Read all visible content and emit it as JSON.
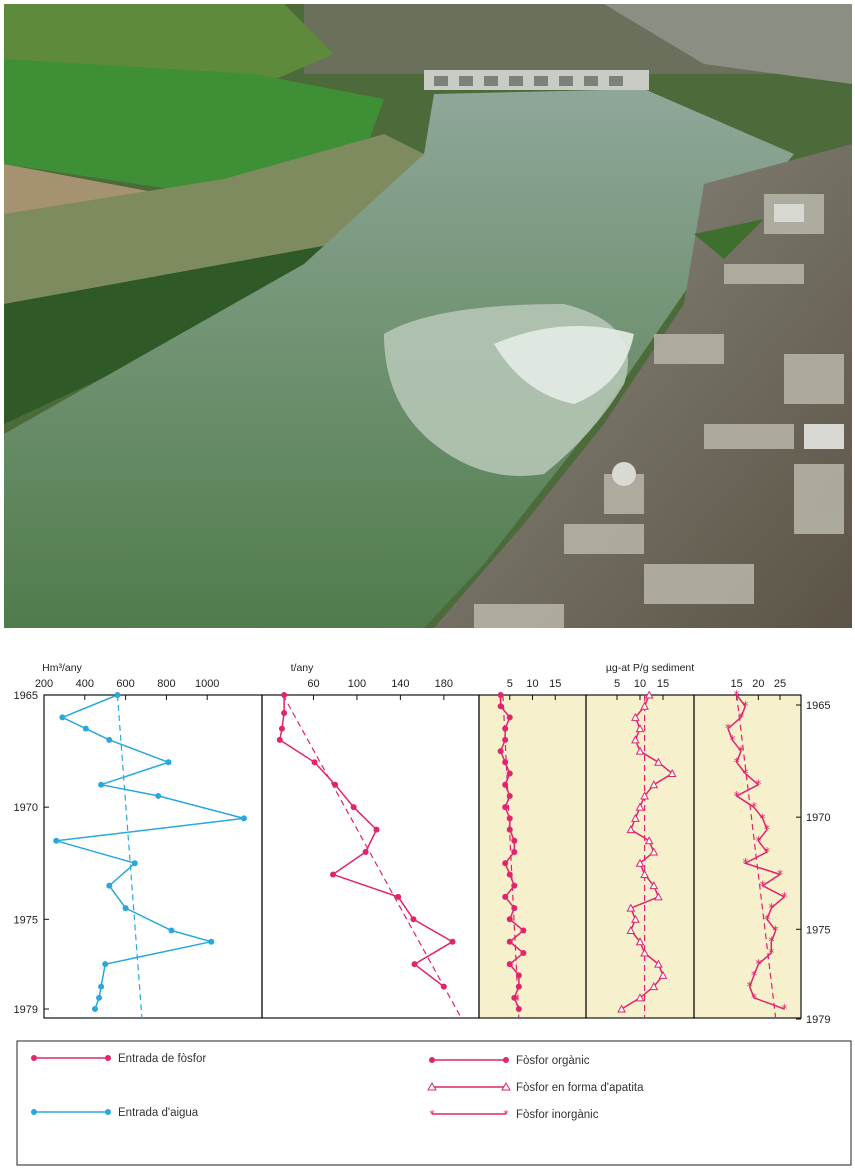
{
  "photo": {
    "description_icon": "river-aerial-photo-icon"
  },
  "colors": {
    "water": "#29a8dc",
    "phosphorus": "#e0246e",
    "shade": "#f6f0cc"
  },
  "chart_data": [
    {
      "id": "water",
      "type": "line",
      "unit_label": "Hm³/any",
      "x_ticks": [
        200,
        400,
        600,
        800,
        1000
      ],
      "xlim": [
        200,
        1200
      ],
      "y": [
        1965,
        1966,
        1966.5,
        1967,
        1968,
        1969,
        1969.5,
        1970.5,
        1971.5,
        1972.5,
        1973.5,
        1974.5,
        1975.5,
        1976,
        1977,
        1978,
        1978.5,
        1979
      ],
      "x": [
        560,
        290,
        405,
        520,
        810,
        480,
        760,
        1180,
        260,
        645,
        520,
        600,
        825,
        1020,
        500,
        480,
        470,
        450
      ],
      "trend": {
        "x": [
          560,
          680
        ],
        "y": [
          1965,
          1979.4
        ]
      },
      "series_name": "Entrada d'aigua"
    },
    {
      "id": "phosphorus-input",
      "type": "line",
      "unit_label": "t/any",
      "x_ticks": [
        60,
        100,
        140,
        180
      ],
      "xlim": [
        20,
        205
      ],
      "y": [
        1965,
        1965.8,
        1966.5,
        1967,
        1968,
        1969,
        1970,
        1971,
        1972,
        1973,
        1974,
        1975,
        1976,
        1977,
        1978
      ],
      "x": [
        33,
        33,
        31,
        29,
        61,
        80,
        97,
        118,
        108,
        78,
        138,
        152,
        188,
        153,
        180
      ],
      "trend": {
        "x": [
          32,
          196
        ],
        "y": [
          1965,
          1979.4
        ]
      },
      "series_name": "Entrada de fòsfor"
    },
    {
      "id": "organic",
      "type": "line",
      "unit_label": "",
      "x_ticks": [
        5,
        10,
        15
      ],
      "xlim": [
        0,
        20
      ],
      "y": [
        1965,
        1965.5,
        1966,
        1966.5,
        1967,
        1967.5,
        1968,
        1968.5,
        1969,
        1969.5,
        1970,
        1970.5,
        1971,
        1971.5,
        1972,
        1972.5,
        1973,
        1973.5,
        1974,
        1974.5,
        1975,
        1975.5,
        1976,
        1976.5,
        1977,
        1977.5,
        1978,
        1978.5,
        1979
      ],
      "x": [
        3,
        3,
        5,
        4,
        4,
        3,
        4,
        5,
        4,
        5,
        4,
        5,
        5,
        6,
        6,
        4,
        5,
        6,
        4,
        6,
        5,
        8,
        5,
        8,
        5,
        7,
        7,
        6,
        7
      ],
      "trend": {
        "x": [
          3.5,
          7
        ],
        "y": [
          1965,
          1979.4
        ]
      },
      "series_name": "Fòsfor orgànic"
    },
    {
      "id": "apatite",
      "type": "line",
      "unit_label": "µg-at P/g sediment",
      "x_ticks": [
        5,
        10,
        15
      ],
      "xlim": [
        0,
        20
      ],
      "y": [
        1965,
        1965.5,
        1966,
        1966.5,
        1967,
        1967.5,
        1968,
        1968.5,
        1969,
        1969.5,
        1970,
        1970.5,
        1971,
        1971.5,
        1972,
        1972.5,
        1973,
        1973.5,
        1974,
        1974.5,
        1975,
        1975.5,
        1976,
        1976.5,
        1977,
        1977.5,
        1978,
        1978.5,
        1979
      ],
      "x": [
        12,
        11,
        9,
        10,
        9,
        10,
        14,
        17,
        13,
        11,
        10,
        9,
        8,
        12,
        13,
        10,
        11,
        13,
        14,
        8,
        9,
        8,
        10,
        11,
        14,
        15,
        13,
        10,
        6
      ],
      "trend": {
        "x": [
          11,
          11
        ],
        "y": [
          1965,
          1979.4
        ]
      },
      "series_name": "Fòsfor en forma d'apatita"
    },
    {
      "id": "inorganic",
      "type": "line",
      "unit_label": "",
      "x_ticks": [
        15,
        20,
        25
      ],
      "xlim": [
        7,
        28
      ],
      "y": [
        1965,
        1965.5,
        1966,
        1966.5,
        1967,
        1967.5,
        1968,
        1968.5,
        1969,
        1969.5,
        1970,
        1970.5,
        1971,
        1971.5,
        1972,
        1972.5,
        1973,
        1973.5,
        1974,
        1974.5,
        1975,
        1975.5,
        1976,
        1976.5,
        1977,
        1977.5,
        1978,
        1978.5,
        1979
      ],
      "x": [
        15,
        17,
        16,
        13,
        14,
        16,
        15,
        17,
        20,
        15,
        19,
        21,
        22,
        20,
        22,
        17,
        25,
        21,
        26,
        23,
        22,
        24,
        23,
        23,
        20,
        19,
        18,
        19,
        26
      ],
      "trend": {
        "x": [
          15,
          24
        ],
        "y": [
          1965,
          1979.4
        ]
      },
      "series_name": "Fòsfor inorgànic"
    }
  ],
  "y_axis": {
    "ticks": [
      1965,
      1970,
      1975,
      1979
    ]
  },
  "legend": {
    "phosphorus_input": "Entrada de fòsfor",
    "water_input": "Entrada d'aigua",
    "organic": "Fòsfor orgànic",
    "apatite": "Fòsfor en forma d'apatita",
    "inorganic": "Fòsfor inorgànic"
  }
}
